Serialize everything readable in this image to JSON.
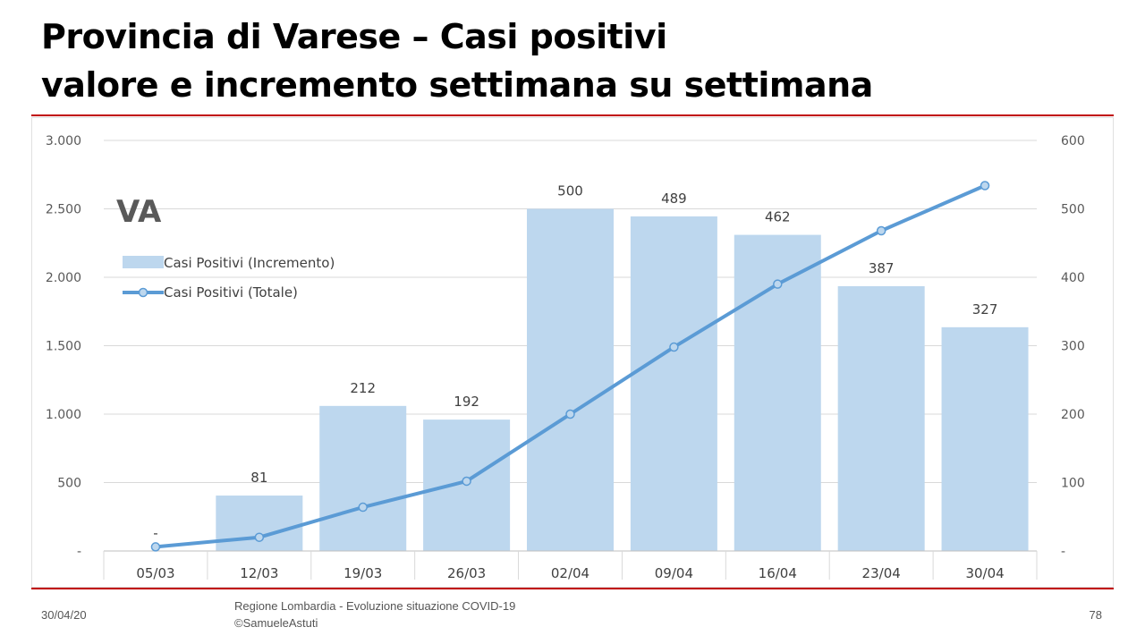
{
  "slide": {
    "title_line1": "Provincia di Varese – Casi positivi",
    "title_line2": "valore e incremento settimana su settimana",
    "footer_date": "30/04/20",
    "footer_source_line1": "Regione Lombardia - Evoluzione situazione COVID-19",
    "footer_source_line2": "©SamueleAstuti",
    "page_number": "78",
    "accent_color": "#c00000"
  },
  "chart_data": {
    "type": "bar+line",
    "annotation": "VA",
    "categories": [
      "05/03",
      "12/03",
      "19/03",
      "26/03",
      "02/04",
      "09/04",
      "16/04",
      "23/04",
      "30/04"
    ],
    "series": [
      {
        "name": "Casi Positivi (Incremento)",
        "type": "bar",
        "axis": "right",
        "values": [
          0,
          81,
          212,
          192,
          500,
          489,
          462,
          387,
          327
        ],
        "labels": [
          "-",
          "81",
          "212",
          "192",
          "500",
          "489",
          "462",
          "387",
          "327"
        ],
        "color": "#bdd7ee"
      },
      {
        "name": "Casi Positivi (Totale)",
        "type": "line",
        "axis": "left",
        "values": [
          30,
          100,
          320,
          510,
          1000,
          1490,
          1950,
          2340,
          2670
        ],
        "color": "#5b9bd5"
      }
    ],
    "left_axis": {
      "min": 0,
      "max": 3000,
      "ticks": [
        "-",
        "500",
        "1.000",
        "1.500",
        "2.000",
        "2.500",
        "3.000"
      ]
    },
    "right_axis": {
      "min": 0,
      "max": 600,
      "ticks": [
        "-",
        "100",
        "200",
        "300",
        "400",
        "500",
        "600"
      ]
    },
    "grid": true,
    "legend_position": "top-left"
  }
}
